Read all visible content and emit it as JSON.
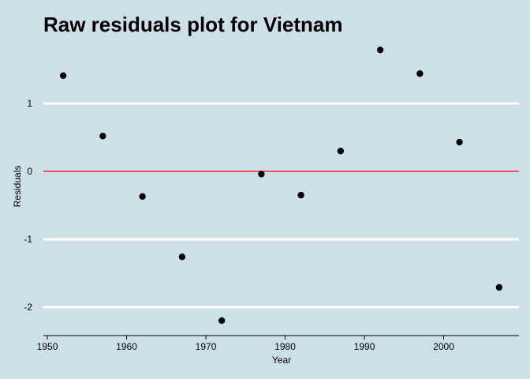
{
  "chart_data": {
    "type": "scatter",
    "title": "Raw residuals plot for Vietnam",
    "xlabel": "Year",
    "ylabel": "Residuals",
    "xlim": [
      1949.5,
      2009.5
    ],
    "ylim": [
      -2.42,
      1.92
    ],
    "x_ticks": [
      1950,
      1960,
      1970,
      1980,
      1990,
      2000
    ],
    "x_tick_labels": [
      "1950",
      "1960",
      "1970",
      "1980",
      "1990",
      "2000"
    ],
    "y_ticks": [
      1,
      0,
      -1,
      -2
    ],
    "y_tick_labels": [
      "1",
      "0",
      "-1",
      "-2"
    ],
    "grid": "horizontal",
    "reference_line": {
      "y": 0,
      "color": "#ff0000"
    },
    "colors": {
      "background": "#cde0e8",
      "grid": "#ffffff",
      "points": "#000000",
      "reference": "#ff0000"
    },
    "series": [
      {
        "x": [
          1952,
          1957,
          1962,
          1967,
          1972,
          1977,
          1982,
          1987,
          1992,
          1997,
          2002,
          2007
        ],
        "values": [
          1.41,
          0.52,
          -0.37,
          -1.26,
          -2.2,
          -0.04,
          -0.35,
          0.3,
          1.79,
          1.44,
          0.43,
          -1.71
        ]
      }
    ]
  }
}
